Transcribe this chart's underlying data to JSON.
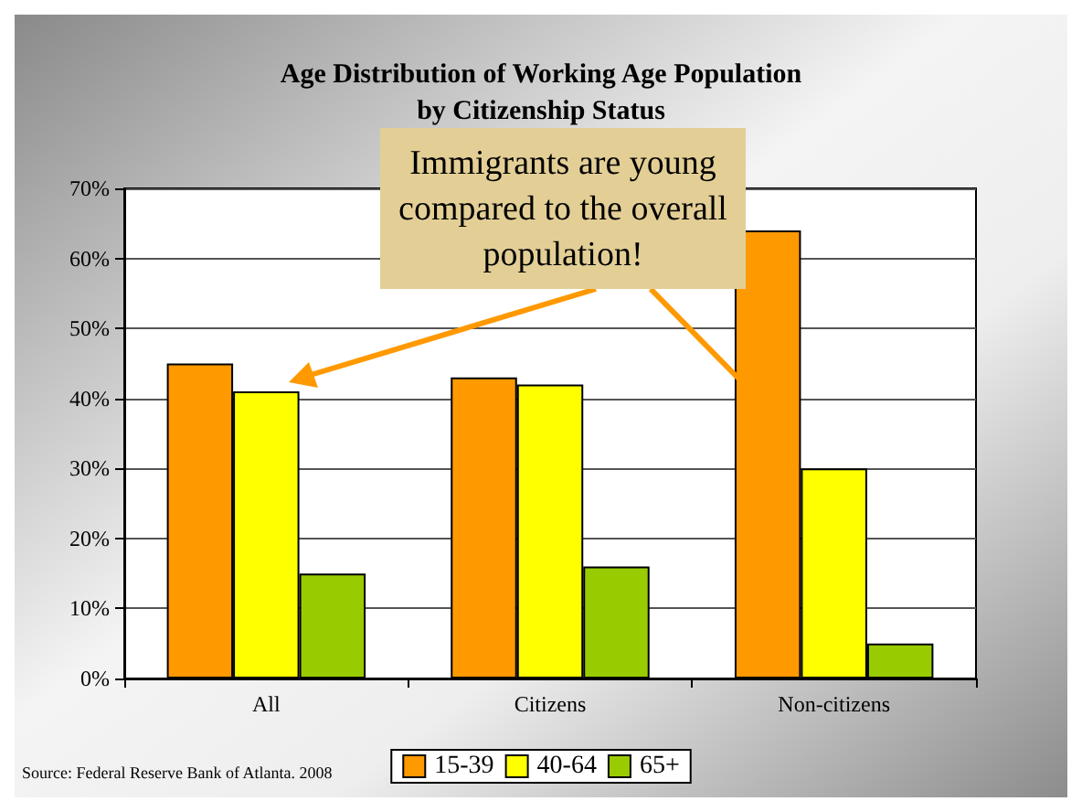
{
  "chart_data": {
    "type": "bar",
    "title": "Age Distribution of Working Age Population\nby Citizenship Status",
    "categories": [
      "All",
      "Citizens",
      "Non-citizens"
    ],
    "series": [
      {
        "name": "15-39",
        "color": "#ff9900",
        "values": [
          45,
          43,
          64
        ]
      },
      {
        "name": "40-64",
        "color": "#ffff00",
        "values": [
          41,
          42,
          30
        ]
      },
      {
        "name": "65+",
        "color": "#99cc00",
        "values": [
          15,
          16,
          5
        ]
      }
    ],
    "ylim": [
      0,
      70
    ],
    "yticks": [
      {
        "value": 0,
        "label": "0%"
      },
      {
        "value": 10,
        "label": "10%"
      },
      {
        "value": 20,
        "label": "20%"
      },
      {
        "value": 30,
        "label": "30%"
      },
      {
        "value": 40,
        "label": "40%"
      },
      {
        "value": 50,
        "label": "50%"
      },
      {
        "value": 60,
        "label": "60%"
      },
      {
        "value": 70,
        "label": "70%"
      }
    ],
    "grid": "y",
    "legend": "bottom",
    "annotations": [
      "Immigrants are young compared to the overall population!",
      "Source: Federal Reserve Bank of Atlanta. 2008"
    ]
  }
}
